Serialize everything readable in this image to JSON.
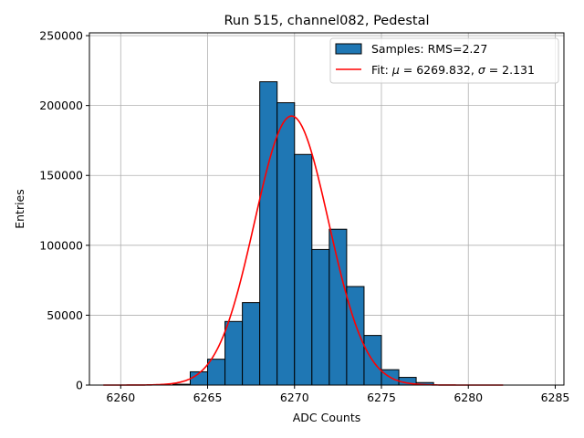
{
  "chart_data": {
    "type": "bar",
    "title": "Run 515, channel082, Pedestal",
    "xlabel": "ADC Counts",
    "ylabel": "Entries",
    "xlim": [
      6258.2,
      6285.5
    ],
    "ylim": [
      0,
      252000
    ],
    "grid": true,
    "legend_position": "top-right",
    "x_ticks": [
      6260,
      6265,
      6270,
      6275,
      6280,
      6285
    ],
    "y_ticks": [
      0,
      50000,
      100000,
      150000,
      200000,
      250000
    ],
    "bin_width": 1,
    "bins": [
      {
        "left": 6263,
        "value": 600
      },
      {
        "left": 6264,
        "value": 9500
      },
      {
        "left": 6265,
        "value": 18500
      },
      {
        "left": 6266,
        "value": 45500
      },
      {
        "left": 6267,
        "value": 59000
      },
      {
        "left": 6268,
        "value": 217000
      },
      {
        "left": 6269,
        "value": 202000
      },
      {
        "left": 6270,
        "value": 165000
      },
      {
        "left": 6271,
        "value": 97000
      },
      {
        "left": 6272,
        "value": 111500
      },
      {
        "left": 6273,
        "value": 70500
      },
      {
        "left": 6274,
        "value": 35500
      },
      {
        "left": 6275,
        "value": 11000
      },
      {
        "left": 6276,
        "value": 5500
      },
      {
        "left": 6277,
        "value": 1800
      }
    ],
    "series": [
      {
        "name": "Samples: RMS=2.27",
        "type": "histogram",
        "color": "#1f77b4"
      },
      {
        "name": "Fit",
        "type": "gaussian",
        "color": "#ff0000",
        "mu": 6269.832,
        "sigma": 2.131,
        "amplitude": 192500,
        "x_range": [
          6259,
          6282
        ]
      }
    ],
    "legend": [
      {
        "text": "Samples: RMS=2.27",
        "kind": "patch"
      },
      {
        "text_prefix": "Fit: ",
        "mu_symbol": "μ",
        "mu_text": " = 6269.832, ",
        "sigma_symbol": "σ",
        "sigma_text": " = 2.131",
        "kind": "line"
      }
    ]
  },
  "colors": {
    "bar_fill": "#1f77b4",
    "bar_edge": "#000000",
    "fit_line": "#ff0000",
    "grid": "#b0b0b0"
  }
}
